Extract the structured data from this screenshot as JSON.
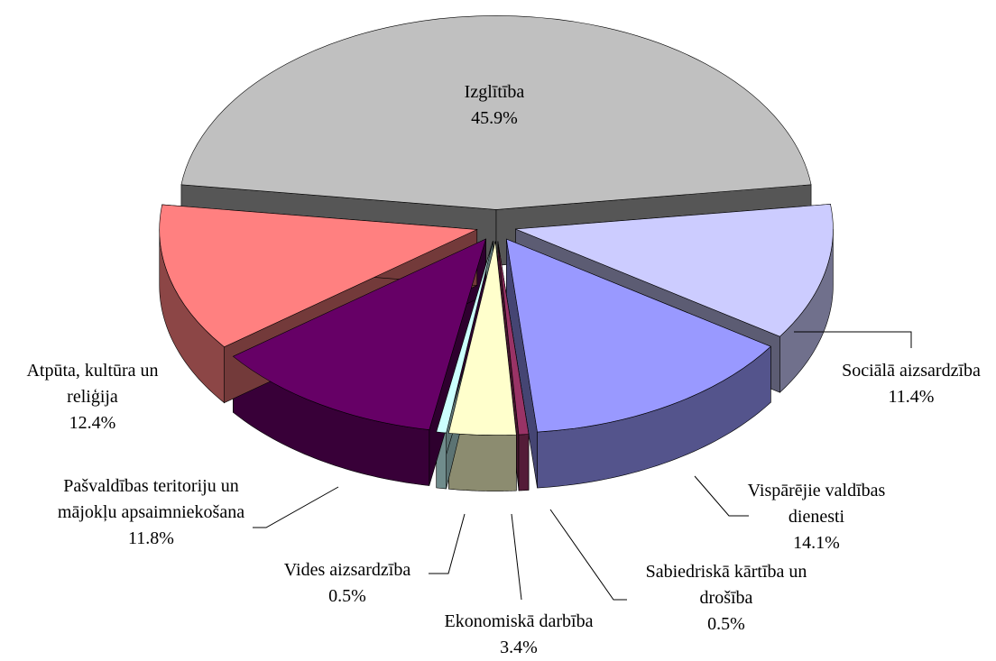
{
  "chart_data": {
    "type": "pie",
    "categories": [
      "Izglītība",
      "Sociālā aizsardzība",
      "Vispārējie valdības dienesti",
      "Sabiedriskā kārtība un drošība",
      "Ekonomiskā darbība",
      "Vides aizsardzība",
      "Pašvaldības teritoriju un mājokļu apsaimniekošana",
      "Atpūta, kultūra un reliģija"
    ],
    "values": [
      45.9,
      11.4,
      14.1,
      0.5,
      3.4,
      0.5,
      11.8,
      12.4
    ],
    "value_labels": [
      "45.9%",
      "11.4%",
      "14.1%",
      "0.5%",
      "3.4%",
      "0.5%",
      "11.8%",
      "12.4%"
    ],
    "colors": [
      "#c0c0c0",
      "#ccccff",
      "#9999ff",
      "#993366",
      "#ffffcc",
      "#ccffff",
      "#660066",
      "#ff8080"
    ]
  }
}
